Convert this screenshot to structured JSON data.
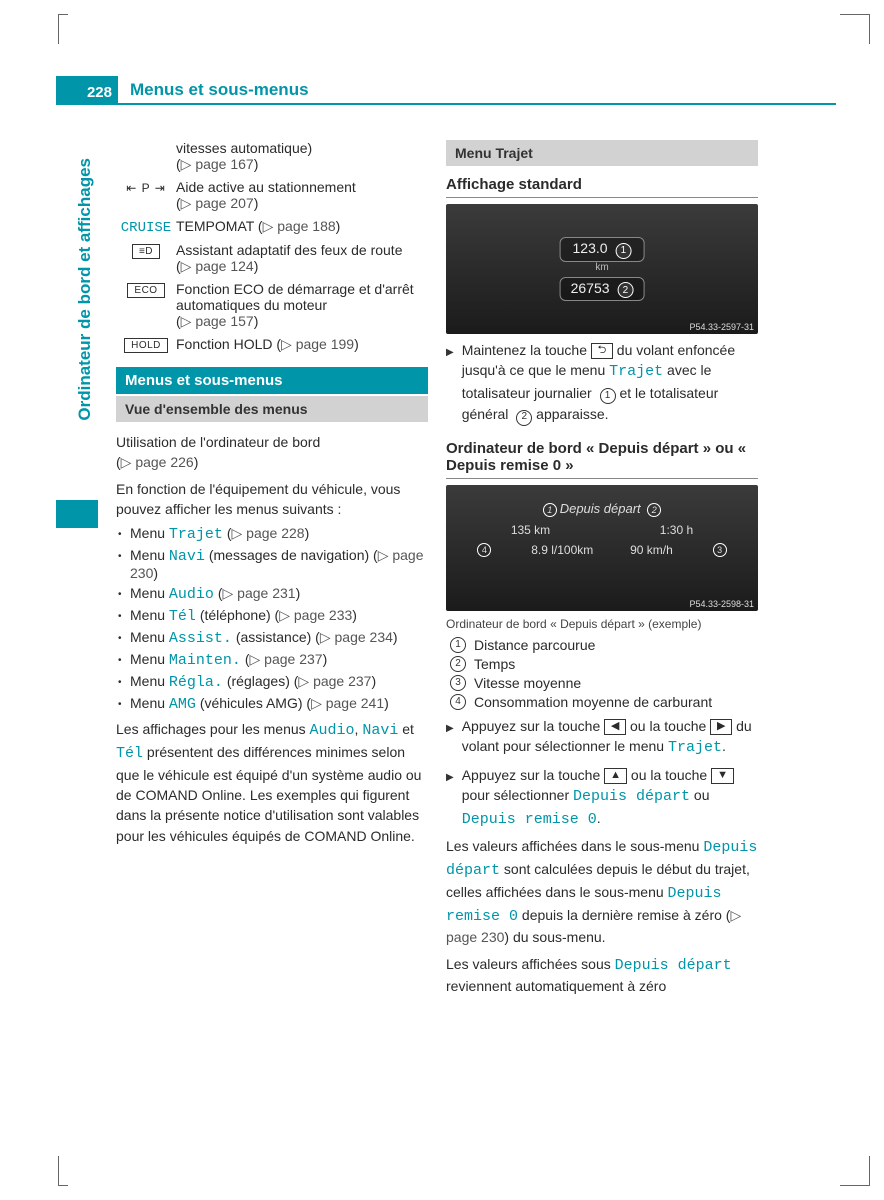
{
  "page_number": "228",
  "header_title": "Menus et sous-menus",
  "side_label": "Ordinateur de bord et affichages",
  "features": [
    {
      "icon_type": "none",
      "text": "vitesses automatique)",
      "ref": "page 167"
    },
    {
      "icon_type": "pa",
      "icon_text": "⇤ P ⇥",
      "text": "Aide active au stationnement",
      "ref": "page 207"
    },
    {
      "icon_type": "cruise",
      "icon_text": "CRUISE",
      "text": "TEMPOMAT",
      "ref": "page 188",
      "inline": true
    },
    {
      "icon_type": "lowbeam",
      "icon_text": "☄",
      "text": "Assistant adaptatif des feux de route",
      "ref": "page 124"
    },
    {
      "icon_type": "box",
      "icon_text": "ECO",
      "text": "Fonction ECO de démarrage et d'arrêt automatiques du moteur",
      "ref": "page 157"
    },
    {
      "icon_type": "box",
      "icon_text": "HOLD",
      "text": "Fonction HOLD",
      "ref": "page 199",
      "inline": true
    }
  ],
  "section1_title": "Menus et sous-menus",
  "subsection1_title": "Vue d'ensemble des menus",
  "intro_para": "Utilisation de l'ordinateur de bord",
  "intro_ref": "page 226",
  "intro_para2": "En fonction de l'équipement du véhicule, vous pouvez afficher les menus suivants :",
  "menus": [
    {
      "prefix": "Menu",
      "term": "Trajet",
      "suffix": "",
      "ref": "page 228"
    },
    {
      "prefix": "Menu",
      "term": "Navi",
      "suffix": "(messages de navigation)",
      "ref": "page 230"
    },
    {
      "prefix": "Menu",
      "term": "Audio",
      "suffix": "",
      "ref": "page 231"
    },
    {
      "prefix": "Menu",
      "term": "Tél",
      "suffix": "(téléphone)",
      "ref": "page 233"
    },
    {
      "prefix": "Menu",
      "term": "Assist.",
      "suffix": "(assistance)",
      "ref": "page 234"
    },
    {
      "prefix": "Menu",
      "term": "Mainten.",
      "suffix": "",
      "ref": "page 237"
    },
    {
      "prefix": "Menu",
      "term": "Régla.",
      "suffix": "(réglages)",
      "ref": "page 237"
    },
    {
      "prefix": "Menu",
      "term": "AMG",
      "suffix": "(véhicules AMG)",
      "ref": "page 241"
    }
  ],
  "notice_para": {
    "pre": "Les affichages pour les menus ",
    "t1": "Audio",
    "mid1": ", ",
    "t2": "Navi",
    "mid2": " et ",
    "t3": "Tél",
    "post": " présentent des différences minimes selon que le véhicule est équipé d'un système audio ou de COMAND Online. Les exemples qui figurent dans la présente notice d'utilisation sont valables pour les véhicules équipés de COMAND Online."
  },
  "right": {
    "menu_trajet_bar": "Menu Trajet",
    "heading_standard": "Affichage standard",
    "display1": {
      "line1": "123.0",
      "unit1": "km",
      "line2": "26753",
      "callouts": [
        "1",
        "2"
      ],
      "img_code": "P54.33-2597-31"
    },
    "step1": {
      "pre": "Maintenez la touche ",
      "key": "⮌",
      "mid": " du volant enfoncée jusqu'à ce que le menu ",
      "term": "Trajet",
      "post1": " avec le totalisateur journalier ",
      "call1": "1",
      "post2": " et le totalisateur général ",
      "call2": "2",
      "post3": " apparaisse."
    },
    "heading_depuis": "Ordinateur de bord « Depuis départ » ou « Depuis remise 0 »",
    "display2": {
      "title": "Depuis départ",
      "v1": "135 km",
      "v2": "1:30 h",
      "v3": "8.9 l/100km",
      "v4": "90 km/h",
      "callouts": [
        "1",
        "2",
        "3",
        "4"
      ],
      "img_code": "P54.33-2598-31"
    },
    "caption2": "Ordinateur de bord « Depuis départ » (exemple)",
    "legend": [
      {
        "n": "1",
        "label": "Distance parcourue"
      },
      {
        "n": "2",
        "label": "Temps"
      },
      {
        "n": "3",
        "label": "Vitesse moyenne"
      },
      {
        "n": "4",
        "label": "Consommation moyenne de carburant"
      }
    ],
    "step2": {
      "pre": "Appuyez sur la touche ",
      "key1": "◀",
      "or": " ou la touche ",
      "key2": "▶",
      "mid": " du volant pour sélectionner le menu ",
      "term": "Trajet",
      "end": "."
    },
    "step3": {
      "pre": "Appuyez sur la touche ",
      "key1": "▲",
      "or": " ou la touche ",
      "key2": "▼",
      "mid": " pour sélectionner ",
      "term1": "Depuis départ",
      "or2": " ou ",
      "term2": "Depuis remise 0",
      "end": "."
    },
    "para_values": {
      "pre": "Les valeurs affichées dans le sous-menu ",
      "t1": "Depuis départ",
      "mid1": " sont calculées depuis le début du trajet, celles affichées dans le sous-menu ",
      "t2": "Depuis remise 0",
      "mid2": " depuis la dernière remise à zéro (",
      "ref": "page 230",
      "post": ") du sous-menu."
    },
    "para_reset": {
      "pre": "Les valeurs affichées sous ",
      "t1": "Depuis départ",
      "post": " reviennent automatiquement à zéro"
    }
  }
}
